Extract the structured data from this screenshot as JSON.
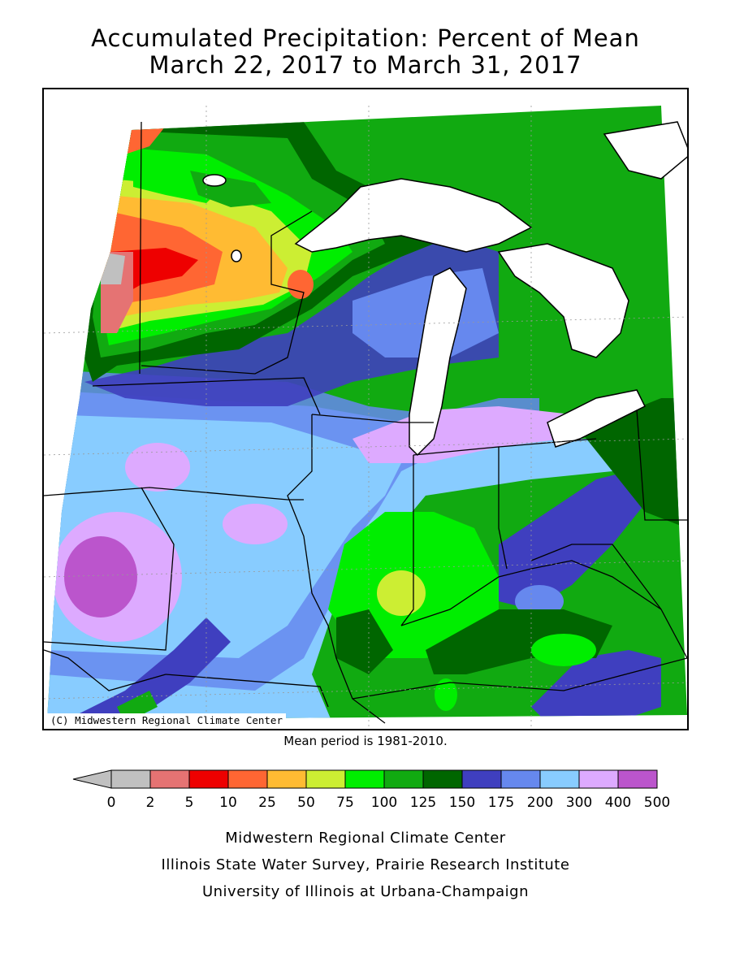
{
  "title_line1": "Accumulated Precipitation: Percent of Mean",
  "title_line2": "March 22, 2017 to March 31, 2017",
  "copyright": "(C) Midwestern Regional Climate Center",
  "mean_period": "Mean period is 1981-2010.",
  "legend": {
    "ticks": [
      "0",
      "2",
      "5",
      "10",
      "25",
      "50",
      "75",
      "100",
      "125",
      "150",
      "175",
      "200",
      "300",
      "400",
      "500"
    ],
    "colors": [
      "#c0c0c0",
      "#e57373",
      "#ee0000",
      "#ff6633",
      "#ffbb33",
      "#ccee33",
      "#00ee00",
      "#11aa11",
      "#006600",
      "#3f3fbf",
      "#6688ee",
      "#88ccff",
      "#ddaaff",
      "#bb55cc"
    ]
  },
  "credits": [
    "Midwestern Regional Climate Center",
    "Illinois State Water Survey, Prairie Research Institute",
    "University of Illinois at Urbana-Champaign"
  ],
  "palette": {
    "lt0": "#c0c0c0",
    "p2": "#e57373",
    "p5": "#ee0000",
    "p10": "#ff6633",
    "p25": "#ffbb33",
    "p50": "#ccee33",
    "p75": "#00ee00",
    "p100": "#11aa11",
    "p125": "#006600",
    "p150": "#3f3fbf",
    "p175": "#6688ee",
    "p200": "#88ccff",
    "p300": "#ddaaff",
    "p400": "#bb55cc"
  }
}
